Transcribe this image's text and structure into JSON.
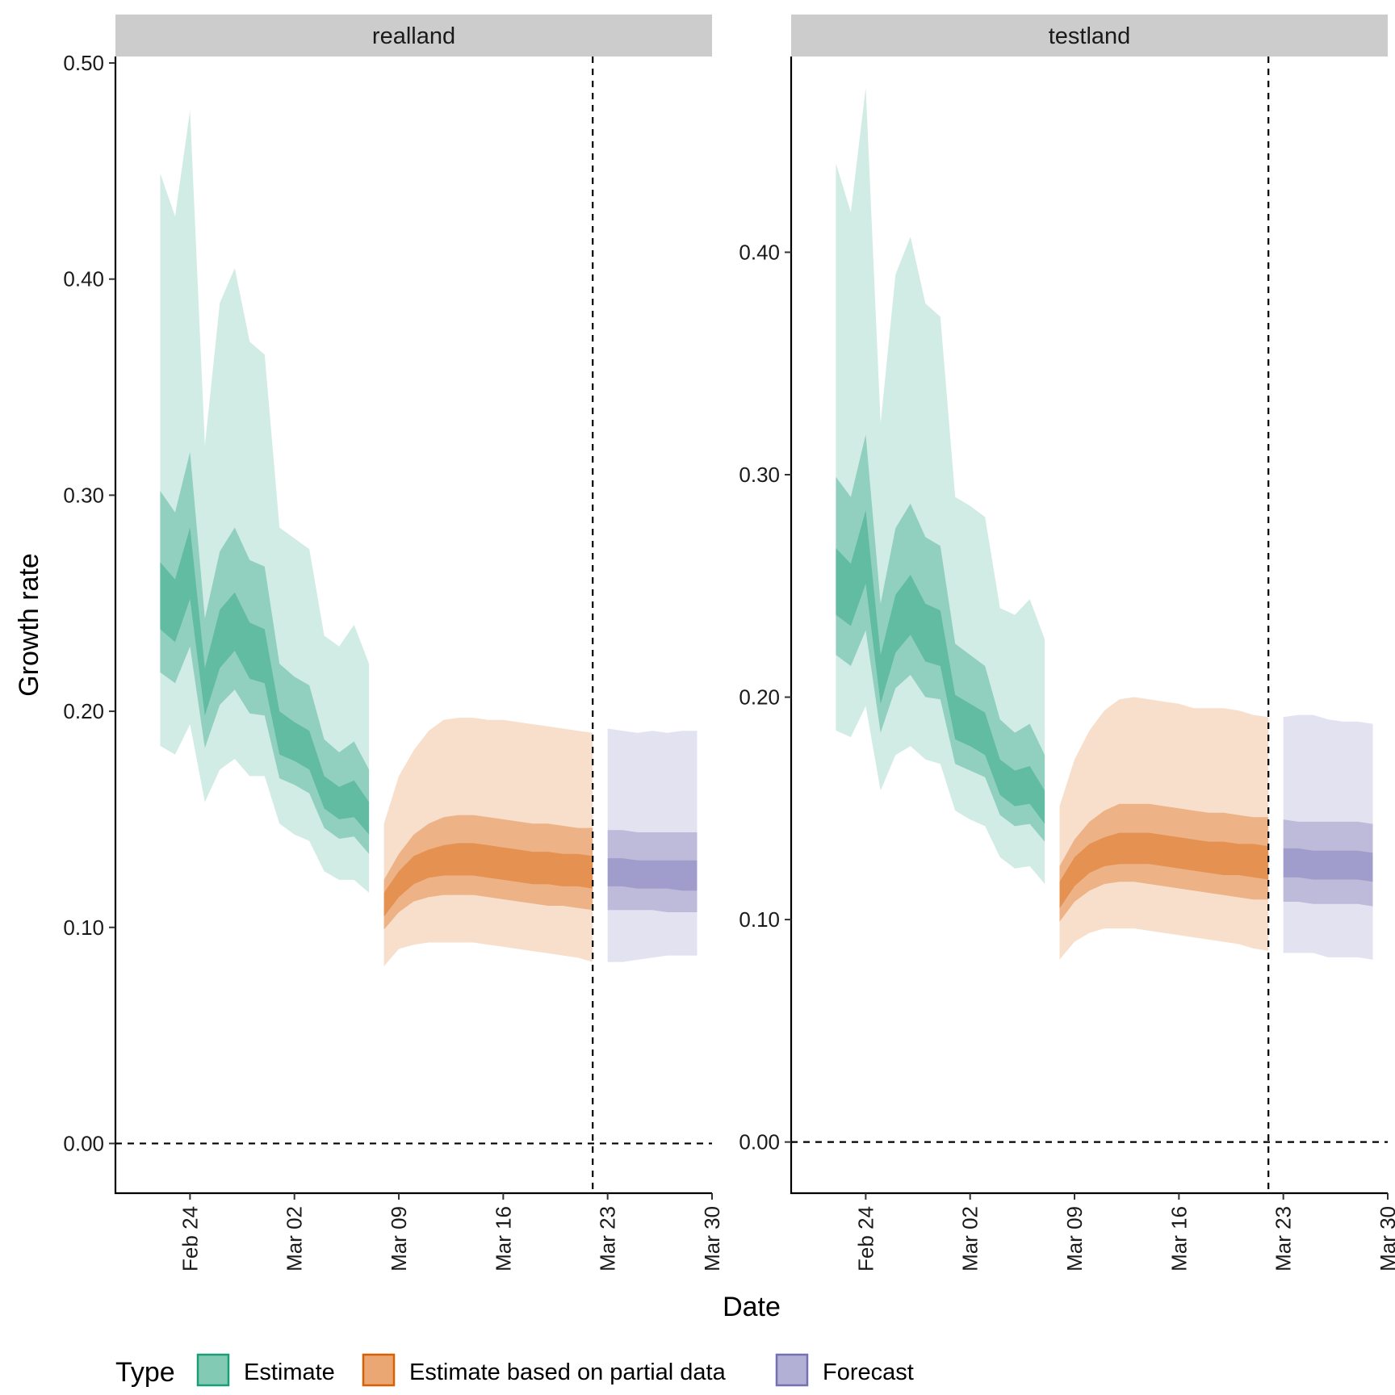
{
  "chart_data": {
    "type": "area",
    "xlabel": "Date",
    "ylabel": "Growth rate",
    "colors": {
      "estimate": "#1b9e77",
      "partial": "#d95f02",
      "forecast": "#7570b3",
      "strip": "#cccccc"
    },
    "legend": {
      "title": "Type",
      "position": "bottom",
      "items": [
        {
          "key": "estimate",
          "label": "Estimate"
        },
        {
          "key": "partial",
          "label": "Estimate based on partial data"
        },
        {
          "key": "forecast",
          "label": "Forecast"
        }
      ]
    },
    "xlim": [
      "2020-02-19",
      "2020-03-30"
    ],
    "x_ticks": [
      {
        "date": "2020-02-24",
        "label": "Feb 24"
      },
      {
        "date": "2020-03-02",
        "label": "Mar 02"
      },
      {
        "date": "2020-03-09",
        "label": "Mar 09"
      },
      {
        "date": "2020-03-16",
        "label": "Mar 16"
      },
      {
        "date": "2020-03-23",
        "label": "Mar 23"
      },
      {
        "date": "2020-03-30",
        "label": "Mar 30"
      }
    ],
    "date_line": "2020-03-22",
    "zero_line": 0,
    "grid": false,
    "panels": [
      {
        "name": "realland",
        "ylim": [
          -0.023,
          0.503
        ],
        "y_ticks": [
          {
            "value": 0.0,
            "label": "0.00"
          },
          {
            "value": 0.1,
            "label": "0.10"
          },
          {
            "value": 0.2,
            "label": "0.20"
          },
          {
            "value": 0.3,
            "label": "0.30"
          },
          {
            "value": 0.4,
            "label": "0.40"
          },
          {
            "value": 0.5,
            "label": "0.50"
          }
        ],
        "series": [
          {
            "key": "estimate",
            "x": [
              "2020-02-22",
              "2020-02-23",
              "2020-02-24",
              "2020-02-25",
              "2020-02-26",
              "2020-02-27",
              "2020-02-28",
              "2020-02-29",
              "2020-03-01",
              "2020-03-02",
              "2020-03-03",
              "2020-03-04",
              "2020-03-05",
              "2020-03-06",
              "2020-03-07"
            ],
            "lower_90": [
              0.184,
              0.18,
              0.194,
              0.158,
              0.173,
              0.178,
              0.17,
              0.17,
              0.148,
              0.143,
              0.14,
              0.126,
              0.122,
              0.122,
              0.116
            ],
            "upper_90": [
              0.449,
              0.429,
              0.478,
              0.323,
              0.389,
              0.405,
              0.371,
              0.365,
              0.285,
              0.28,
              0.275,
              0.235,
              0.23,
              0.24,
              0.222
            ],
            "lower_50": [
              0.218,
              0.213,
              0.23,
              0.183,
              0.203,
              0.21,
              0.199,
              0.198,
              0.169,
              0.166,
              0.162,
              0.146,
              0.141,
              0.142,
              0.134
            ],
            "upper_50": [
              0.302,
              0.292,
              0.32,
              0.243,
              0.274,
              0.285,
              0.27,
              0.267,
              0.222,
              0.216,
              0.212,
              0.187,
              0.181,
              0.186,
              0.173
            ],
            "lower_20": [
              0.238,
              0.232,
              0.252,
              0.198,
              0.22,
              0.228,
              0.215,
              0.213,
              0.18,
              0.177,
              0.173,
              0.155,
              0.15,
              0.151,
              0.143
            ],
            "upper_20": [
              0.269,
              0.261,
              0.285,
              0.22,
              0.247,
              0.255,
              0.241,
              0.238,
              0.2,
              0.195,
              0.191,
              0.17,
              0.165,
              0.168,
              0.158
            ]
          },
          {
            "key": "partial",
            "x": [
              "2020-03-08",
              "2020-03-09",
              "2020-03-10",
              "2020-03-11",
              "2020-03-12",
              "2020-03-13",
              "2020-03-14",
              "2020-03-15",
              "2020-03-16",
              "2020-03-17",
              "2020-03-18",
              "2020-03-19",
              "2020-03-20",
              "2020-03-21",
              "2020-03-22"
            ],
            "lower_90": [
              0.082,
              0.09,
              0.092,
              0.093,
              0.093,
              0.093,
              0.093,
              0.092,
              0.091,
              0.09,
              0.089,
              0.088,
              0.087,
              0.086,
              0.084
            ],
            "upper_90": [
              0.148,
              0.17,
              0.182,
              0.191,
              0.196,
              0.197,
              0.197,
              0.196,
              0.196,
              0.195,
              0.194,
              0.193,
              0.192,
              0.191,
              0.19
            ],
            "lower_50": [
              0.099,
              0.107,
              0.112,
              0.114,
              0.115,
              0.115,
              0.115,
              0.114,
              0.113,
              0.112,
              0.111,
              0.11,
              0.11,
              0.109,
              0.108
            ],
            "upper_50": [
              0.122,
              0.134,
              0.143,
              0.148,
              0.151,
              0.152,
              0.152,
              0.151,
              0.15,
              0.149,
              0.148,
              0.148,
              0.147,
              0.146,
              0.146
            ],
            "lower_20": [
              0.105,
              0.114,
              0.12,
              0.123,
              0.124,
              0.124,
              0.124,
              0.123,
              0.122,
              0.121,
              0.12,
              0.12,
              0.119,
              0.119,
              0.118
            ],
            "upper_20": [
              0.116,
              0.126,
              0.133,
              0.136,
              0.138,
              0.139,
              0.139,
              0.138,
              0.137,
              0.136,
              0.135,
              0.135,
              0.134,
              0.134,
              0.133
            ]
          },
          {
            "key": "forecast",
            "x": [
              "2020-03-23",
              "2020-03-24",
              "2020-03-25",
              "2020-03-26",
              "2020-03-27",
              "2020-03-28",
              "2020-03-29"
            ],
            "lower_90": [
              0.084,
              0.084,
              0.085,
              0.086,
              0.087,
              0.087,
              0.087
            ],
            "upper_90": [
              0.192,
              0.191,
              0.19,
              0.191,
              0.19,
              0.191,
              0.191
            ],
            "lower_50": [
              0.108,
              0.108,
              0.108,
              0.108,
              0.107,
              0.107,
              0.107
            ],
            "upper_50": [
              0.145,
              0.145,
              0.144,
              0.144,
              0.144,
              0.144,
              0.144
            ],
            "lower_20": [
              0.119,
              0.119,
              0.118,
              0.118,
              0.118,
              0.117,
              0.117
            ],
            "upper_20": [
              0.132,
              0.132,
              0.131,
              0.131,
              0.131,
              0.131,
              0.131
            ]
          }
        ]
      },
      {
        "name": "testland",
        "ylim": [
          -0.023,
          0.488
        ],
        "y_ticks": [
          {
            "value": 0.0,
            "label": "0.00"
          },
          {
            "value": 0.1,
            "label": "0.10"
          },
          {
            "value": 0.2,
            "label": "0.20"
          },
          {
            "value": 0.3,
            "label": "0.30"
          },
          {
            "value": 0.4,
            "label": "0.40"
          }
        ],
        "series": [
          {
            "key": "estimate",
            "x": [
              "2020-02-22",
              "2020-02-23",
              "2020-02-24",
              "2020-02-25",
              "2020-02-26",
              "2020-02-27",
              "2020-02-28",
              "2020-02-29",
              "2020-03-01",
              "2020-03-02",
              "2020-03-03",
              "2020-03-04",
              "2020-03-05",
              "2020-03-06",
              "2020-03-07"
            ],
            "lower_90": [
              0.185,
              0.182,
              0.196,
              0.158,
              0.174,
              0.178,
              0.172,
              0.17,
              0.149,
              0.145,
              0.142,
              0.128,
              0.123,
              0.124,
              0.116
            ],
            "upper_90": [
              0.44,
              0.418,
              0.474,
              0.323,
              0.39,
              0.407,
              0.377,
              0.371,
              0.29,
              0.286,
              0.281,
              0.24,
              0.237,
              0.244,
              0.226
            ],
            "lower_50": [
              0.219,
              0.214,
              0.23,
              0.184,
              0.204,
              0.21,
              0.2,
              0.199,
              0.17,
              0.167,
              0.164,
              0.147,
              0.142,
              0.143,
              0.135
            ],
            "upper_50": [
              0.299,
              0.29,
              0.318,
              0.242,
              0.276,
              0.287,
              0.272,
              0.268,
              0.224,
              0.219,
              0.214,
              0.19,
              0.184,
              0.188,
              0.174
            ],
            "lower_20": [
              0.237,
              0.232,
              0.251,
              0.197,
              0.22,
              0.228,
              0.216,
              0.214,
              0.181,
              0.178,
              0.174,
              0.156,
              0.151,
              0.152,
              0.143
            ],
            "upper_20": [
              0.267,
              0.26,
              0.284,
              0.219,
              0.246,
              0.255,
              0.242,
              0.239,
              0.201,
              0.197,
              0.193,
              0.172,
              0.167,
              0.169,
              0.158
            ]
          },
          {
            "key": "partial",
            "x": [
              "2020-03-08",
              "2020-03-09",
              "2020-03-10",
              "2020-03-11",
              "2020-03-12",
              "2020-03-13",
              "2020-03-14",
              "2020-03-15",
              "2020-03-16",
              "2020-03-17",
              "2020-03-18",
              "2020-03-19",
              "2020-03-20",
              "2020-03-21",
              "2020-03-22"
            ],
            "lower_90": [
              0.082,
              0.09,
              0.094,
              0.096,
              0.096,
              0.096,
              0.095,
              0.094,
              0.093,
              0.092,
              0.091,
              0.09,
              0.089,
              0.087,
              0.086
            ],
            "upper_90": [
              0.151,
              0.172,
              0.185,
              0.194,
              0.199,
              0.2,
              0.199,
              0.198,
              0.197,
              0.195,
              0.195,
              0.195,
              0.194,
              0.192,
              0.191
            ],
            "lower_50": [
              0.099,
              0.108,
              0.113,
              0.116,
              0.117,
              0.117,
              0.116,
              0.115,
              0.114,
              0.113,
              0.112,
              0.111,
              0.11,
              0.109,
              0.109
            ],
            "upper_50": [
              0.124,
              0.136,
              0.144,
              0.149,
              0.152,
              0.152,
              0.152,
              0.151,
              0.15,
              0.149,
              0.148,
              0.148,
              0.147,
              0.146,
              0.146
            ],
            "lower_20": [
              0.105,
              0.115,
              0.121,
              0.124,
              0.125,
              0.125,
              0.125,
              0.124,
              0.123,
              0.122,
              0.121,
              0.12,
              0.12,
              0.119,
              0.118
            ],
            "upper_20": [
              0.117,
              0.128,
              0.134,
              0.137,
              0.139,
              0.139,
              0.139,
              0.138,
              0.137,
              0.136,
              0.135,
              0.135,
              0.134,
              0.134,
              0.133
            ]
          },
          {
            "key": "forecast",
            "x": [
              "2020-03-23",
              "2020-03-24",
              "2020-03-25",
              "2020-03-26",
              "2020-03-27",
              "2020-03-28",
              "2020-03-29"
            ],
            "lower_90": [
              0.085,
              0.085,
              0.085,
              0.083,
              0.083,
              0.083,
              0.082
            ],
            "upper_90": [
              0.191,
              0.192,
              0.192,
              0.19,
              0.189,
              0.189,
              0.188
            ],
            "lower_50": [
              0.108,
              0.108,
              0.107,
              0.107,
              0.107,
              0.107,
              0.106
            ],
            "upper_50": [
              0.145,
              0.144,
              0.144,
              0.144,
              0.144,
              0.144,
              0.143
            ],
            "lower_20": [
              0.119,
              0.119,
              0.118,
              0.118,
              0.118,
              0.118,
              0.117
            ],
            "upper_20": [
              0.132,
              0.132,
              0.131,
              0.131,
              0.131,
              0.131,
              0.13
            ]
          }
        ]
      }
    ]
  }
}
